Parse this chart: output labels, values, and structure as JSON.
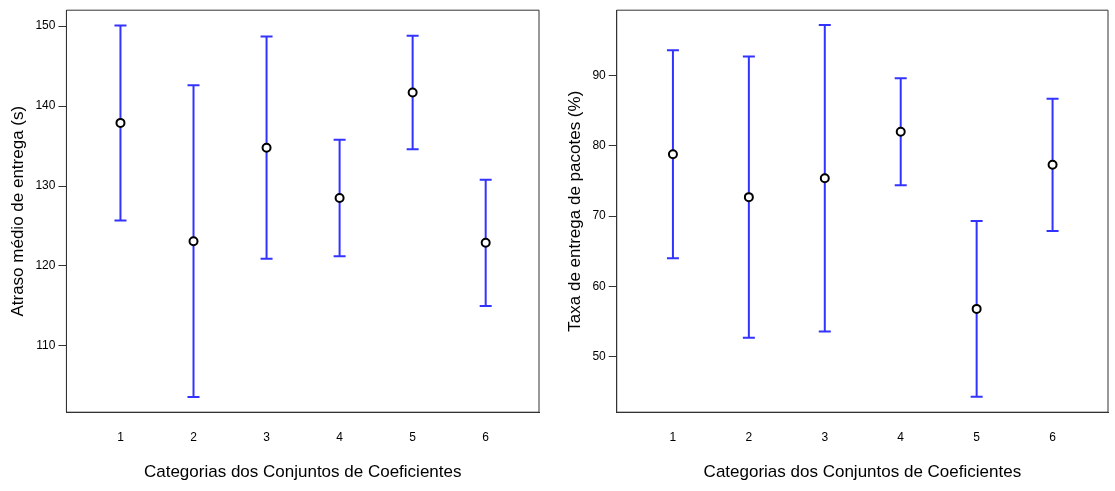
{
  "chart_data": [
    {
      "type": "scatter",
      "xlabel": "Categorias dos Conjuntos de Coeficientes",
      "ylabel": "Atraso médio de entrega (s)",
      "x": [
        1,
        2,
        3,
        4,
        5,
        6
      ],
      "values": [
        137.9,
        123.1,
        134.8,
        128.5,
        141.7,
        122.9
      ],
      "errors": [
        12.2,
        19.5,
        13.9,
        7.3,
        7.1,
        7.9
      ],
      "color": "#000000",
      "marker": "circle",
      "xlim": [
        0.26,
        6.73
      ],
      "xticks": [
        1,
        2,
        3,
        4,
        5,
        6
      ],
      "ylim": [
        101.7,
        152.0
      ],
      "yticks": [
        110,
        120,
        130,
        140,
        150
      ],
      "grid": false,
      "legend": false
    },
    {
      "type": "scatter",
      "xlabel": "Categorias dos Conjuntos de Coeficientes",
      "ylabel": "Taxa de entrega de pacotes (%)",
      "x": [
        1,
        2,
        3,
        4,
        5,
        6
      ],
      "values": [
        78.8,
        72.7,
        75.4,
        82.0,
        56.8,
        77.3
      ],
      "errors": [
        14.8,
        20.0,
        21.8,
        7.6,
        12.5,
        9.4
      ],
      "color": "#000000",
      "marker": "circle",
      "xlim": [
        0.26,
        6.73
      ],
      "xticks": [
        1,
        2,
        3,
        4,
        5,
        6
      ],
      "ylim": [
        42.1,
        99.3
      ],
      "yticks": [
        50,
        60,
        70,
        80,
        90
      ],
      "grid": false,
      "legend": false
    }
  ]
}
